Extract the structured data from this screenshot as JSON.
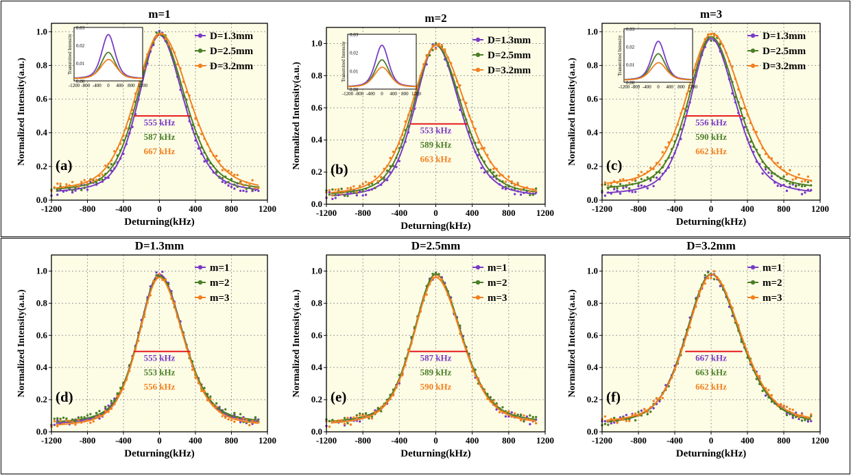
{
  "figure": {
    "background": "#ffffff",
    "plot_bg": "#fdfde6"
  },
  "colors": {
    "purple": "#7a3bc4",
    "green": "#4b7e26",
    "orange": "#f2801f",
    "red": "#e41a1c",
    "grid": "#9a9a9a"
  },
  "chart_data": [
    {
      "panel_id": "a",
      "type": "line",
      "title": "m=1",
      "panel_label": "(a)",
      "xlabel": "Deturning(kHz)",
      "ylabel": "Normalized Intensity(a.u.)",
      "xlim": [
        -1200,
        1200
      ],
      "ylim": [
        0,
        1.05
      ],
      "xticks": [
        "-1200",
        "-800",
        "-400",
        "0",
        "400",
        "800",
        "1200"
      ],
      "yticks": [
        "0.0",
        "0.2",
        "0.4",
        "0.6",
        "0.8",
        "1.0"
      ],
      "grid": true,
      "legend_position": "top-right",
      "series": [
        {
          "name": "D=1.3mm",
          "color": "purple",
          "peak": 0.98,
          "center": 0,
          "fwhm": 555,
          "baseline": 0.03
        },
        {
          "name": "D=2.5mm",
          "color": "green",
          "peak": 0.99,
          "center": 0,
          "fwhm": 587,
          "baseline": 0.04
        },
        {
          "name": "D=3.2mm",
          "color": "orange",
          "peak": 0.99,
          "center": 10,
          "fwhm": 667,
          "baseline": 0.04
        }
      ],
      "fwhm_labels": [
        "555 kHz",
        "587 kHz",
        "667 kHz"
      ],
      "inset": {
        "ylabel": "Transmitted Intensity",
        "yticks": [
          "0.00",
          "0.01",
          "0.02",
          "0.03"
        ],
        "xticks": [
          "-1200",
          "-800",
          "-400",
          "0",
          "400",
          "800",
          "1200"
        ],
        "peaks": [
          0.025,
          0.015,
          0.011
        ]
      }
    },
    {
      "panel_id": "b",
      "type": "line",
      "title": "m=2",
      "panel_label": "(b)",
      "xlabel": "Deturning(kHz)",
      "ylabel": "Normalized Intensity(a.u.)",
      "xlim": [
        -1200,
        1200
      ],
      "ylim": [
        0,
        1.1
      ],
      "xticks": [
        "-1200",
        "-800",
        "-400",
        "0",
        "400",
        "800",
        "1200"
      ],
      "yticks": [
        "0.0",
        "0.2",
        "0.4",
        "0.6",
        "0.8",
        "1.0"
      ],
      "grid": true,
      "legend_position": "top-right",
      "series": [
        {
          "name": "D=1.3mm",
          "color": "purple",
          "peak": 0.99,
          "center": 0,
          "fwhm": 553,
          "baseline": 0.03
        },
        {
          "name": "D=2.5mm",
          "color": "green",
          "peak": 0.99,
          "center": 0,
          "fwhm": 589,
          "baseline": 0.04
        },
        {
          "name": "D=3.2mm",
          "color": "orange",
          "peak": 0.99,
          "center": 10,
          "fwhm": 663,
          "baseline": 0.04
        }
      ],
      "fwhm_labels": [
        "553 kHz",
        "589 kHz",
        "663 kHz"
      ],
      "inset": {
        "ylabel": "Transmitted Intensity",
        "yticks": [
          "0.00",
          "0.01",
          "0.02",
          "0.03"
        ],
        "xticks": [
          "-1200",
          "-800",
          "-400",
          "0",
          "400",
          "800",
          "1200"
        ],
        "peaks": [
          0.023,
          0.015,
          0.011
        ]
      }
    },
    {
      "panel_id": "c",
      "type": "line",
      "title": "m=3",
      "panel_label": "(c)",
      "xlabel": "Deturning(kHz)",
      "ylabel": "Normalized Intensity(a.u.)",
      "xlim": [
        -1200,
        1200
      ],
      "ylim": [
        0,
        1.05
      ],
      "xticks": [
        "-1200",
        "-800",
        "-400",
        "0",
        "400",
        "800",
        "1200"
      ],
      "yticks": [
        "0.0",
        "0.2",
        "0.4",
        "0.6",
        "0.8",
        "1.0"
      ],
      "grid": true,
      "legend_position": "top-right",
      "series": [
        {
          "name": "D=1.3mm",
          "color": "purple",
          "peak": 0.96,
          "center": 0,
          "fwhm": 556,
          "baseline": 0.02
        },
        {
          "name": "D=2.5mm",
          "color": "green",
          "peak": 0.97,
          "center": 0,
          "fwhm": 590,
          "baseline": 0.05
        },
        {
          "name": "D=3.2mm",
          "color": "orange",
          "peak": 0.99,
          "center": 10,
          "fwhm": 662,
          "baseline": 0.07
        }
      ],
      "fwhm_labels": [
        "556 kHz",
        "590 kHz",
        "662 kHz"
      ],
      "inset": {
        "ylabel": "Transmitted Intensity",
        "yticks": [
          "0.00",
          "0.01",
          "0.02",
          "0.03"
        ],
        "xticks": [
          "-1200",
          "-800",
          "-400",
          "0",
          "400",
          "800",
          "1200"
        ],
        "peaks": [
          0.022,
          0.015,
          0.01
        ]
      }
    },
    {
      "panel_id": "d",
      "type": "line",
      "title": "D=1.3mm",
      "panel_label": "(d)",
      "xlabel": "Deturning(kHz)",
      "ylabel": "Normalized Intensity(a.u.)",
      "xlim": [
        -1200,
        1200
      ],
      "ylim": [
        0,
        1.1
      ],
      "xticks": [
        "-1200",
        "-800",
        "-400",
        "0",
        "400",
        "800",
        "1200"
      ],
      "yticks": [
        "0.0",
        "0.2",
        "0.4",
        "0.6",
        "0.8",
        "1.0"
      ],
      "grid": true,
      "legend_position": "top-right",
      "series": [
        {
          "name": "m=1",
          "color": "purple",
          "peak": 0.98,
          "center": 0,
          "fwhm": 555,
          "baseline": 0.03
        },
        {
          "name": "m=2",
          "color": "green",
          "peak": 0.97,
          "center": 0,
          "fwhm": 553,
          "baseline": 0.04
        },
        {
          "name": "m=3",
          "color": "orange",
          "peak": 0.96,
          "center": 0,
          "fwhm": 556,
          "baseline": 0.02
        }
      ],
      "fwhm_labels": [
        "555 kHz",
        "553 kHz",
        "556 kHz"
      ]
    },
    {
      "panel_id": "e",
      "type": "line",
      "title": "D=2.5mm",
      "panel_label": "(e)",
      "xlabel": "Deturning(kHz)",
      "ylabel": "Normalized Intensity(a.u.)",
      "xlim": [
        -1200,
        1200
      ],
      "ylim": [
        0,
        1.1
      ],
      "xticks": [
        "-1200",
        "-800",
        "-400",
        "0",
        "400",
        "800",
        "1200"
      ],
      "yticks": [
        "0.0",
        "0.2",
        "0.4",
        "0.6",
        "0.8",
        "1.0"
      ],
      "grid": true,
      "legend_position": "top-right",
      "series": [
        {
          "name": "m=1",
          "color": "purple",
          "peak": 0.98,
          "center": 0,
          "fwhm": 587,
          "baseline": 0.03
        },
        {
          "name": "m=2",
          "color": "green",
          "peak": 0.98,
          "center": 0,
          "fwhm": 589,
          "baseline": 0.04
        },
        {
          "name": "m=3",
          "color": "orange",
          "peak": 0.96,
          "center": 0,
          "fwhm": 590,
          "baseline": 0.03
        }
      ],
      "fwhm_labels": [
        "587 kHz",
        "589 kHz",
        "590 kHz"
      ]
    },
    {
      "panel_id": "f",
      "type": "line",
      "title": "D=3.2mm",
      "panel_label": "(f)",
      "xlabel": "Deturning(kHz)",
      "ylabel": "Normalized Intensity(a.u.)",
      "xlim": [
        -1200,
        1200
      ],
      "ylim": [
        0,
        1.1
      ],
      "xticks": [
        "-1200",
        "-800",
        "-400",
        "0",
        "400",
        "800",
        "1200"
      ],
      "yticks": [
        "0.0",
        "0.2",
        "0.4",
        "0.6",
        "0.8",
        "1.0"
      ],
      "grid": true,
      "legend_position": "top-right",
      "series": [
        {
          "name": "m=1",
          "color": "purple",
          "peak": 0.98,
          "center": 0,
          "fwhm": 667,
          "baseline": 0.03
        },
        {
          "name": "m=2",
          "color": "green",
          "peak": 0.98,
          "center": 0,
          "fwhm": 663,
          "baseline": 0.03
        },
        {
          "name": "m=3",
          "color": "orange",
          "peak": 0.98,
          "center": 10,
          "fwhm": 662,
          "baseline": 0.04
        }
      ],
      "fwhm_labels": [
        "667 kHz",
        "663 kHz",
        "662 kHz"
      ]
    }
  ]
}
